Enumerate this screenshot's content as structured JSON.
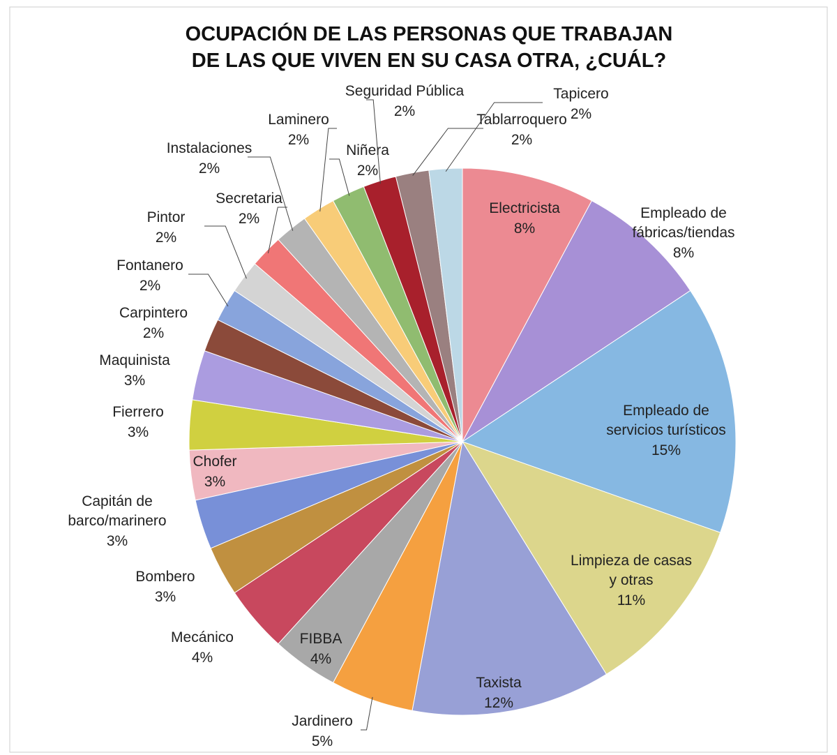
{
  "chart_data": {
    "type": "pie",
    "title": [
      "OCUPACIÓN DE LAS PERSONAS QUE TRABAJAN",
      "DE LAS QUE VIVEN EN SU CASA OTRA, ¿CUÁL?"
    ],
    "categories": [
      "Electricista",
      "Empleado de fábricas/tiendas",
      "Empleado de servicios turísticos",
      "Limpieza de casas y otras",
      "Taxista",
      "Jardinero",
      "FIBBA",
      "Mecánico",
      "Bombero",
      "Capitán de barco/marinero",
      "Chofer",
      "Fierrero",
      "Maquinista",
      "Carpintero",
      "Fontanero",
      "Pintor",
      "Secretaria",
      "Instalaciones",
      "Laminero",
      "Niñera",
      "Seguridad Pública",
      "Tablarroquero",
      "Tapicero"
    ],
    "values": [
      8,
      8,
      15,
      11,
      12,
      5,
      4,
      4,
      3,
      3,
      3,
      3,
      3,
      2,
      2,
      2,
      2,
      2,
      2,
      2,
      2,
      2,
      2
    ],
    "value_labels": [
      "8%",
      "8%",
      "15%",
      "11%",
      "12%",
      "5%",
      "4%",
      "4%",
      "3%",
      "3%",
      "3%",
      "3%",
      "3%",
      "2%",
      "2%",
      "2%",
      "2%",
      "2%",
      "2%",
      "2%",
      "2%",
      "2%",
      "2%"
    ],
    "colors": [
      "#ec8a92",
      "#a790d6",
      "#86b8e2",
      "#dcd68c",
      "#98a0d6",
      "#f5a040",
      "#a8a8a8",
      "#c8485e",
      "#c09040",
      "#7890d8",
      "#f0b8c0",
      "#d0d040",
      "#ab9ce0",
      "#8b4a3a",
      "#88a4dc",
      "#d4d4d4",
      "#f07676",
      "#b4b4b4",
      "#f8cc78",
      "#90bc70",
      "#a8202c",
      "#9a8080",
      "#bcd8e6"
    ]
  }
}
